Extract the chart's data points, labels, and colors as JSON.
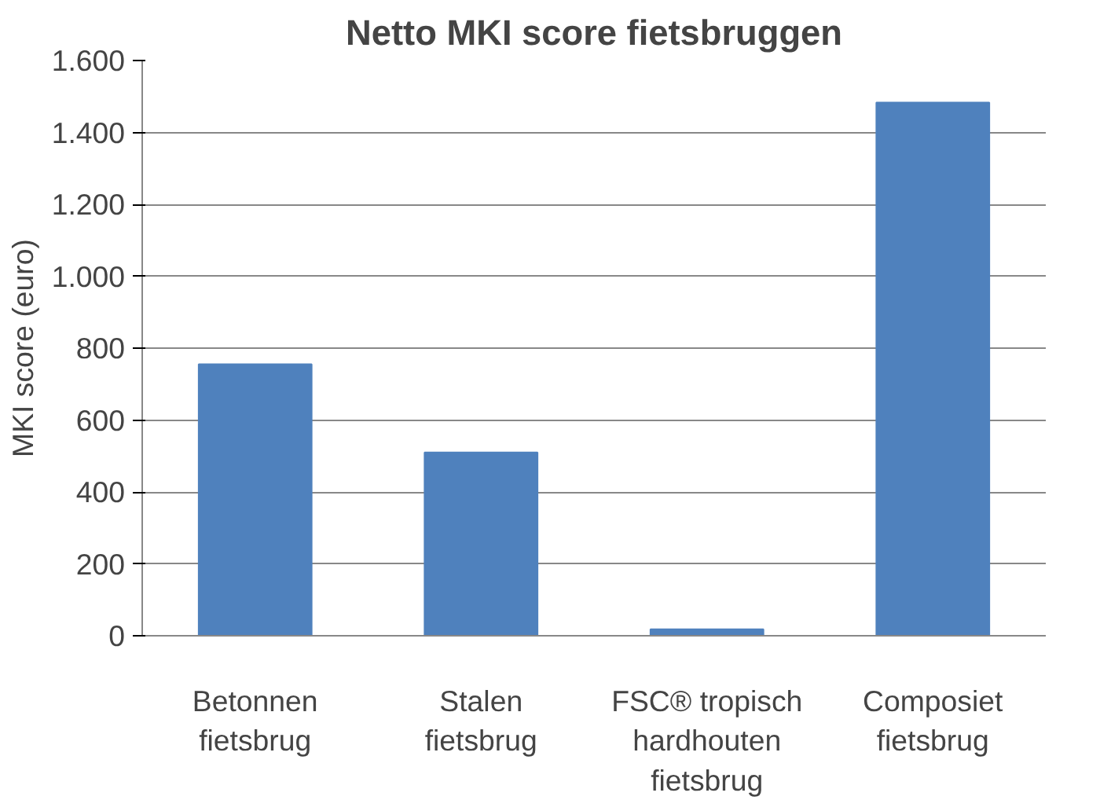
{
  "chart_data": {
    "type": "bar",
    "title": "Netto MKI score fietsbruggen",
    "ylabel": "MKI score (euro)",
    "categories": [
      "Betonnen\nfietsbrug",
      "Stalen\nfietsbrug",
      "FSC® tropisch\nhardhouten\nfietsbrug",
      "Composiet\nfietsbrug"
    ],
    "series": [
      {
        "color": "#4f81bd",
        "values": [
          755,
          510,
          18,
          1483
        ]
      }
    ],
    "ylim": [
      0,
      1600
    ],
    "yticks": [
      {
        "value": 0,
        "label": "0"
      },
      {
        "value": 200,
        "label": "200"
      },
      {
        "value": 400,
        "label": "400"
      },
      {
        "value": 600,
        "label": "600"
      },
      {
        "value": 800,
        "label": "800"
      },
      {
        "value": 1000,
        "label": "1.000"
      },
      {
        "value": 1200,
        "label": "1.200"
      },
      {
        "value": 1400,
        "label": "1.400"
      },
      {
        "value": 1600,
        "label": "1.600"
      }
    ],
    "grid": "y"
  }
}
